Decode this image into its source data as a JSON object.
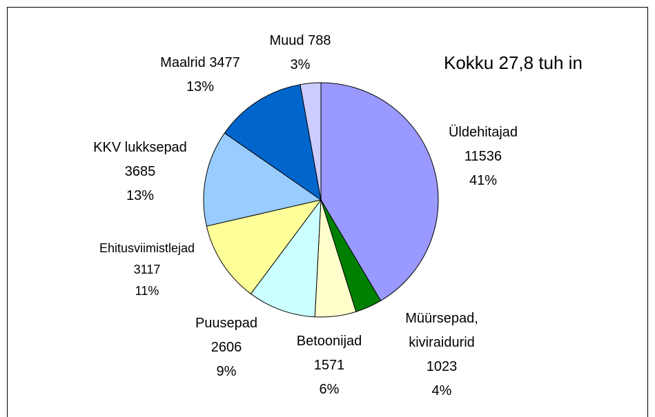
{
  "chart_data": {
    "type": "pie",
    "annotation": "Kokku 27,8 tuh in",
    "categories": [
      "Üldehitajad",
      "Müürsepad, kiviraidurid",
      "Betoonijad",
      "Puusepad",
      "Ehitusviimistlejad",
      "KKV lukksepad",
      "Maalrid",
      "Muud"
    ],
    "values": [
      11536,
      1023,
      1571,
      2606,
      3117,
      3685,
      3477,
      788
    ],
    "percent_labels": [
      "41%",
      "4%",
      "6%",
      "9%",
      "11%",
      "13%",
      "13%",
      "3%"
    ],
    "colors": [
      "#9999ff",
      "#008000",
      "#ffffcc",
      "#ccffff",
      "#ffff99",
      "#99ccff",
      "#0066cc",
      "#ccccff"
    ]
  }
}
